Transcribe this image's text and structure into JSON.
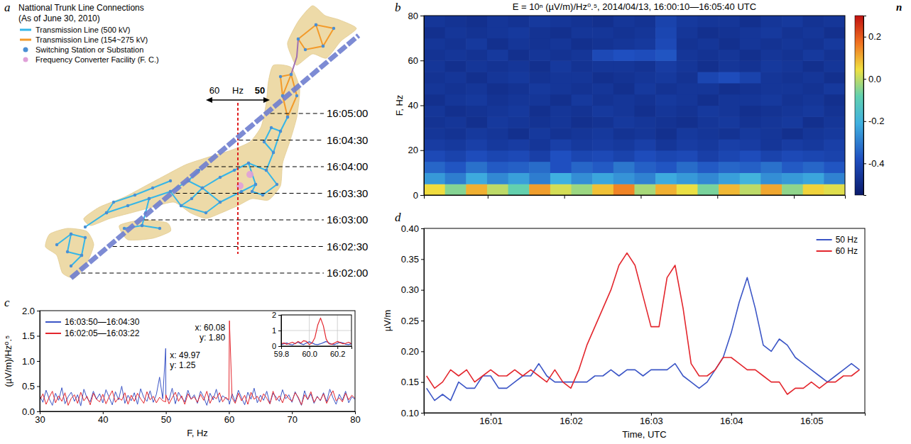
{
  "map": {
    "panel": "a",
    "title": "Nattional Trunk Line Connections",
    "subtitle": "(As of June 30, 2010)",
    "legend": [
      {
        "label": "Transmission Line (500 kV)",
        "color": "#35b6e8",
        "marker": "line"
      },
      {
        "label": "Transmission Line (154~275 kV)",
        "color": "#f39a2a",
        "marker": "line"
      },
      {
        "label": "Switching Station or Substation",
        "color": "#4a8fd4",
        "marker": "dot"
      },
      {
        "label": "Frequency Converter Facility (F. C.)",
        "color": "#e0a0d8",
        "marker": "dot"
      }
    ],
    "west_hz": 60,
    "unit": "Hz",
    "east_hz": 50,
    "track_times": [
      "16:05:00",
      "16:04:30",
      "16:04:00",
      "16:03:30",
      "16:03:00",
      "16:02:30",
      "16:02:00"
    ]
  },
  "chart_data": [
    {
      "type": "heatmap",
      "panel": "b",
      "title": "E = 10ⁿ (µV/m)/Hz⁰.⁵, 2014/04/13, 16:00:10—16:05:40 UTC",
      "y_label": "F, Hz",
      "x_edges": [
        0.167,
        0.442,
        0.717,
        0.992,
        1.267,
        1.542,
        1.817,
        2.092,
        2.367,
        2.642,
        2.917,
        3.192,
        3.467,
        3.742,
        4.017,
        4.292,
        4.567,
        4.842,
        5.117,
        5.392,
        5.667
      ],
      "y_edges": [
        0,
        5,
        10,
        15,
        20,
        25,
        30,
        35,
        40,
        45,
        50,
        55,
        60,
        65,
        70,
        75,
        80
      ],
      "cells": [
        [
          0.05,
          -0.05,
          0.1,
          0.0,
          -0.08,
          0.12,
          0.02,
          -0.03,
          0.08,
          0.15,
          -0.02,
          0.1,
          0.04,
          -0.06,
          0.09,
          0.0,
          0.11,
          -0.04,
          0.06,
          0.03
        ],
        [
          -0.25,
          -0.3,
          -0.22,
          -0.28,
          -0.24,
          -0.3,
          -0.21,
          -0.27,
          -0.23,
          -0.26,
          -0.29,
          -0.22,
          -0.25,
          -0.28,
          -0.24,
          -0.2,
          -0.27,
          -0.25,
          -0.23,
          -0.29
        ],
        [
          -0.34,
          -0.37,
          -0.32,
          -0.36,
          -0.35,
          -0.33,
          -0.38,
          -0.34,
          -0.36,
          -0.31,
          -0.35,
          -0.37,
          -0.33,
          -0.36,
          -0.34,
          -0.35,
          -0.32,
          -0.36,
          -0.34,
          -0.37
        ],
        [
          -0.4,
          -0.42,
          -0.39,
          -0.41,
          -0.4,
          -0.43,
          -0.38,
          -0.41,
          -0.4,
          -0.42,
          -0.39,
          -0.41,
          -0.4,
          -0.43,
          -0.41,
          -0.39,
          -0.42,
          -0.4,
          -0.41,
          -0.42
        ],
        [
          -0.44,
          -0.45,
          -0.43,
          -0.45,
          -0.44,
          -0.46,
          -0.43,
          -0.45,
          -0.44,
          -0.45,
          -0.43,
          -0.46,
          -0.44,
          -0.45,
          -0.43,
          -0.44,
          -0.46,
          -0.44,
          -0.45,
          -0.43
        ],
        [
          -0.46,
          -0.47,
          -0.45,
          -0.46,
          -0.48,
          -0.45,
          -0.47,
          -0.46,
          -0.45,
          -0.47,
          -0.46,
          -0.48,
          -0.45,
          -0.46,
          -0.47,
          -0.45,
          -0.46,
          -0.48,
          -0.46,
          -0.45
        ],
        [
          -0.47,
          -0.46,
          -0.48,
          -0.45,
          -0.46,
          -0.47,
          -0.46,
          -0.48,
          -0.47,
          -0.45,
          -0.46,
          -0.47,
          -0.48,
          -0.46,
          -0.45,
          -0.47,
          -0.46,
          -0.45,
          -0.48,
          -0.46
        ],
        [
          -0.46,
          -0.48,
          -0.47,
          -0.46,
          -0.45,
          -0.48,
          -0.46,
          -0.47,
          -0.45,
          -0.46,
          -0.48,
          -0.46,
          -0.47,
          -0.45,
          -0.46,
          -0.48,
          -0.47,
          -0.46,
          -0.45,
          -0.47
        ],
        [
          -0.48,
          -0.46,
          -0.45,
          -0.47,
          -0.46,
          -0.46,
          -0.48,
          -0.45,
          -0.47,
          -0.46,
          -0.47,
          -0.45,
          -0.46,
          -0.48,
          -0.46,
          -0.46,
          -0.45,
          -0.47,
          -0.46,
          -0.48
        ],
        [
          -0.46,
          -0.47,
          -0.46,
          -0.48,
          -0.47,
          -0.45,
          -0.46,
          -0.47,
          -0.46,
          -0.48,
          -0.45,
          -0.47,
          -0.46,
          -0.46,
          -0.48,
          -0.47,
          -0.46,
          -0.46,
          -0.47,
          -0.45
        ],
        [
          -0.47,
          -0.46,
          -0.48,
          -0.46,
          -0.45,
          -0.47,
          -0.46,
          -0.46,
          -0.48,
          -0.47,
          -0.46,
          -0.45,
          -0.47,
          -0.41,
          -0.39,
          -0.42,
          -0.46,
          -0.47,
          -0.46,
          -0.48
        ],
        [
          -0.46,
          -0.48,
          -0.46,
          -0.47,
          -0.46,
          -0.48,
          -0.45,
          -0.47,
          -0.46,
          -0.46,
          -0.47,
          -0.44,
          -0.46,
          -0.48,
          -0.46,
          -0.47,
          -0.45,
          -0.46,
          -0.48,
          -0.46
        ],
        [
          -0.47,
          -0.46,
          -0.47,
          -0.45,
          -0.48,
          -0.46,
          -0.47,
          -0.46,
          -0.4,
          -0.38,
          -0.39,
          -0.37,
          -0.46,
          -0.47,
          -0.46,
          -0.48,
          -0.46,
          -0.47,
          -0.45,
          -0.47
        ],
        [
          -0.46,
          -0.47,
          -0.45,
          -0.48,
          -0.46,
          -0.47,
          -0.46,
          -0.48,
          -0.47,
          -0.46,
          -0.45,
          -0.4,
          -0.47,
          -0.46,
          -0.48,
          -0.46,
          -0.47,
          -0.46,
          -0.47,
          -0.45
        ],
        [
          -0.48,
          -0.46,
          -0.47,
          -0.46,
          -0.45,
          -0.47,
          -0.48,
          -0.46,
          -0.46,
          -0.47,
          -0.46,
          -0.41,
          -0.46,
          -0.48,
          -0.47,
          -0.46,
          -0.45,
          -0.47,
          -0.46,
          -0.48
        ],
        [
          -0.46,
          -0.47,
          -0.48,
          -0.46,
          -0.47,
          -0.45,
          -0.46,
          -0.47,
          -0.48,
          -0.46,
          -0.47,
          -0.42,
          -0.45,
          -0.46,
          -0.46,
          -0.48,
          -0.46,
          -0.45,
          -0.47,
          -0.46
        ]
      ],
      "xlim": [
        0.167,
        5.667
      ],
      "xticks": [
        1,
        2,
        3,
        4,
        5
      ],
      "ylim": [
        0,
        80
      ],
      "yticks": [
        0,
        20,
        40,
        60,
        80
      ],
      "tick_labels": "y",
      "colorbar": {
        "lim": [
          -0.55,
          0.3
        ],
        "ticks": [
          -0.4,
          -0.2,
          {
            "value": 0,
            "label": "0.0"
          },
          0.2
        ],
        "label": "n"
      }
    },
    {
      "type": "line",
      "panel": "c",
      "x_label": "F, Hz",
      "y_label": "(µV/m)/Hz⁰.⁵",
      "x": [
        30,
        30.5,
        31,
        31.5,
        32,
        32.5,
        33,
        33.5,
        34,
        34.5,
        35,
        35.5,
        36,
        36.5,
        37,
        37.5,
        38,
        38.5,
        39,
        39.5,
        40,
        40.5,
        41,
        41.5,
        42,
        42.5,
        43,
        43.5,
        44,
        44.5,
        45,
        45.5,
        46,
        46.5,
        47,
        47.5,
        48,
        48.5,
        49,
        49.5,
        49.97,
        50,
        50.5,
        51,
        51.5,
        52,
        52.5,
        53,
        53.5,
        54,
        54.5,
        55,
        55.5,
        56,
        56.5,
        57,
        57.5,
        58,
        58.5,
        59,
        59.5,
        60,
        60.08,
        60.5,
        61,
        61.5,
        62,
        62.5,
        63,
        63.5,
        64,
        64.5,
        65,
        65.5,
        66,
        66.5,
        67,
        67.5,
        68,
        68.5,
        69,
        69.5,
        70,
        70.5,
        71,
        71.5,
        72,
        72.5,
        73,
        73.5,
        74,
        74.5,
        75,
        75.5,
        76,
        76.5,
        77,
        77.5,
        78,
        78.5,
        79,
        79.5,
        80
      ],
      "series": [
        {
          "name": "16:03:50—16:04:30",
          "color": "#3b55c6",
          "values": [
            0.31,
            0.18,
            0.42,
            0.25,
            0.12,
            0.36,
            0.22,
            0.47,
            0.15,
            0.29,
            0.38,
            0.2,
            0.33,
            0.11,
            0.44,
            0.26,
            0.19,
            0.4,
            0.24,
            0.35,
            0.17,
            0.43,
            0.28,
            0.13,
            0.39,
            0.23,
            0.5,
            0.16,
            0.32,
            0.21,
            0.37,
            0.14,
            0.45,
            0.27,
            0.2,
            0.41,
            0.18,
            0.34,
            0.68,
            0.25,
            1.25,
            0.3,
            0.22,
            0.46,
            0.15,
            0.38,
            0.27,
            0.19,
            0.42,
            0.24,
            0.33,
            0.16,
            0.4,
            0.28,
            0.12,
            0.36,
            0.23,
            0.44,
            0.18,
            0.31,
            0.26,
            0.21,
            0.14,
            0.35,
            0.19,
            0.42,
            0.27,
            0.13,
            0.38,
            0.24,
            0.46,
            0.17,
            0.32,
            0.22,
            0.4,
            0.15,
            0.36,
            0.28,
            0.2,
            0.43,
            0.25,
            0.33,
            0.18,
            0.39,
            0.26,
            0.12,
            0.41,
            0.23,
            0.35,
            0.16,
            0.3,
            0.21,
            0.37,
            0.19,
            0.44,
            0.27,
            0.14,
            0.34,
            0.22,
            0.4,
            0.17,
            0.29,
            0.24
          ]
        },
        {
          "name": "16:02:05—16:03:22",
          "color": "#e3262d",
          "values": [
            0.22,
            0.35,
            0.14,
            0.28,
            0.4,
            0.17,
            0.31,
            0.2,
            0.37,
            0.12,
            0.26,
            0.33,
            0.16,
            0.38,
            0.21,
            0.3,
            0.13,
            0.36,
            0.24,
            0.19,
            0.34,
            0.15,
            0.29,
            0.41,
            0.18,
            0.27,
            0.22,
            0.37,
            0.14,
            0.32,
            0.2,
            0.36,
            0.25,
            0.16,
            0.39,
            0.23,
            0.3,
            0.17,
            0.28,
            0.21,
            0.19,
            0.33,
            0.15,
            0.27,
            0.38,
            0.2,
            0.31,
            0.14,
            0.35,
            0.24,
            0.29,
            0.18,
            0.34,
            0.22,
            0.4,
            0.16,
            0.3,
            0.25,
            0.37,
            0.19,
            0.28,
            0.23,
            1.8,
            0.27,
            0.16,
            0.36,
            0.21,
            0.32,
            0.14,
            0.38,
            0.24,
            0.3,
            0.19,
            0.35,
            0.26,
            0.15,
            0.4,
            0.22,
            0.31,
            0.17,
            0.34,
            0.25,
            0.2,
            0.37,
            0.28,
            0.13,
            0.33,
            0.24,
            0.39,
            0.18,
            0.29,
            0.22,
            0.35,
            0.16,
            0.3,
            0.41,
            0.21,
            0.27,
            0.19,
            0.36,
            0.23,
            0.32,
            0.26
          ]
        }
      ],
      "xlim": [
        30,
        80
      ],
      "xticks": [
        30,
        40,
        50,
        60,
        70,
        80
      ],
      "ylim": [
        0,
        2
      ],
      "yticks": [
        {
          "value": 0,
          "label": "0.0"
        },
        0.5,
        {
          "value": 1,
          "label": "1.0"
        },
        1.5,
        {
          "value": 2,
          "label": "2.0"
        }
      ],
      "legend": "top-left",
      "annotations": [
        {
          "x": 49.97,
          "y": 1.25,
          "lines": [
            "x: 49.97",
            "y: 1.25"
          ]
        },
        {
          "x": 60.08,
          "y": 1.8,
          "lines": [
            "x: 60.08",
            "y: 1.80"
          ]
        }
      ]
    },
    {
      "type": "line",
      "x": [
        59.8,
        59.82,
        59.84,
        59.86,
        59.88,
        59.9,
        59.92,
        59.94,
        59.96,
        59.98,
        60.0,
        60.02,
        60.04,
        60.06,
        60.08,
        60.1,
        60.12,
        60.14,
        60.16,
        60.18,
        60.2,
        60.22,
        60.24,
        60.26,
        60.28,
        60.3
      ],
      "series": [
        {
          "color": "#3b55c6",
          "values": [
            0.1,
            0.15,
            0.2,
            0.12,
            0.08,
            0.18,
            0.25,
            0.15,
            0.1,
            0.2,
            0.28,
            0.2,
            0.12,
            0.1,
            0.15,
            0.22,
            0.3,
            0.2,
            0.12,
            0.1,
            0.18,
            0.25,
            0.2,
            0.12,
            0.1,
            0.15
          ]
        },
        {
          "color": "#e3262d",
          "values": [
            0.15,
            0.2,
            0.12,
            0.18,
            0.25,
            0.15,
            0.3,
            0.2,
            0.35,
            0.3,
            0.1,
            0.2,
            0.55,
            1.35,
            1.8,
            1.3,
            0.45,
            0.15,
            0.12,
            0.2,
            0.3,
            0.22,
            0.15,
            0.18,
            0.25,
            0.15
          ]
        }
      ],
      "xlim": [
        59.8,
        60.3
      ],
      "xticks": [
        59.8,
        {
          "value": 60,
          "label": "60.0"
        },
        60.2
      ],
      "ylim": [
        0,
        2
      ],
      "yticks": [
        0,
        1,
        2
      ],
      "grid": true
    },
    {
      "type": "line",
      "panel": "d",
      "x_label": "Time, UTC",
      "y_label": "µV/m",
      "x": [
        0.2,
        0.3,
        0.4,
        0.5,
        0.6,
        0.7,
        0.8,
        0.9,
        1.0,
        1.1,
        1.2,
        1.3,
        1.4,
        1.5,
        1.6,
        1.7,
        1.8,
        1.9,
        2.0,
        2.1,
        2.2,
        2.3,
        2.4,
        2.5,
        2.6,
        2.7,
        2.8,
        2.9,
        3.0,
        3.1,
        3.2,
        3.3,
        3.4,
        3.5,
        3.6,
        3.7,
        3.8,
        3.9,
        4.0,
        4.1,
        4.2,
        4.3,
        4.4,
        4.5,
        4.6,
        4.7,
        4.8,
        4.9,
        5.0,
        5.1,
        5.2,
        5.3,
        5.4,
        5.5,
        5.6
      ],
      "series": [
        {
          "name": "50 Hz",
          "color": "#3b55c6",
          "values": [
            0.14,
            0.12,
            0.13,
            0.12,
            0.15,
            0.14,
            0.14,
            0.16,
            0.16,
            0.14,
            0.14,
            0.15,
            0.16,
            0.16,
            0.18,
            0.16,
            0.15,
            0.15,
            0.15,
            0.15,
            0.15,
            0.16,
            0.16,
            0.17,
            0.16,
            0.17,
            0.17,
            0.16,
            0.17,
            0.17,
            0.17,
            0.18,
            0.16,
            0.15,
            0.14,
            0.15,
            0.17,
            0.19,
            0.23,
            0.28,
            0.32,
            0.27,
            0.21,
            0.2,
            0.22,
            0.21,
            0.19,
            0.18,
            0.17,
            0.16,
            0.15,
            0.16,
            0.17,
            0.18,
            0.17
          ]
        },
        {
          "name": "60 Hz",
          "color": "#e3262d",
          "values": [
            0.16,
            0.14,
            0.15,
            0.17,
            0.16,
            0.17,
            0.15,
            0.16,
            0.17,
            0.16,
            0.16,
            0.17,
            0.16,
            0.17,
            0.16,
            0.15,
            0.17,
            0.15,
            0.14,
            0.17,
            0.21,
            0.24,
            0.27,
            0.3,
            0.34,
            0.36,
            0.34,
            0.29,
            0.24,
            0.24,
            0.32,
            0.34,
            0.27,
            0.18,
            0.16,
            0.16,
            0.17,
            0.19,
            0.19,
            0.18,
            0.17,
            0.17,
            0.16,
            0.15,
            0.15,
            0.13,
            0.14,
            0.14,
            0.15,
            0.14,
            0.15,
            0.15,
            0.16,
            0.16,
            0.17
          ]
        }
      ],
      "xlim": [
        0.167,
        5.667
      ],
      "xticks": [
        {
          "value": 1,
          "label": "16:01"
        },
        {
          "value": 2,
          "label": "16:02"
        },
        {
          "value": 3,
          "label": "16:03"
        },
        {
          "value": 4,
          "label": "16:04"
        },
        {
          "value": 5,
          "label": "16:05"
        }
      ],
      "ylim": [
        0.1,
        0.4
      ],
      "yticks": [
        {
          "value": 0.1,
          "label": "0.10"
        },
        0.15,
        {
          "value": 0.2,
          "label": "0.20"
        },
        0.25,
        {
          "value": 0.3,
          "label": "0.30"
        },
        0.35,
        {
          "value": 0.4,
          "label": "0.40"
        }
      ],
      "legend": "top-right"
    }
  ]
}
